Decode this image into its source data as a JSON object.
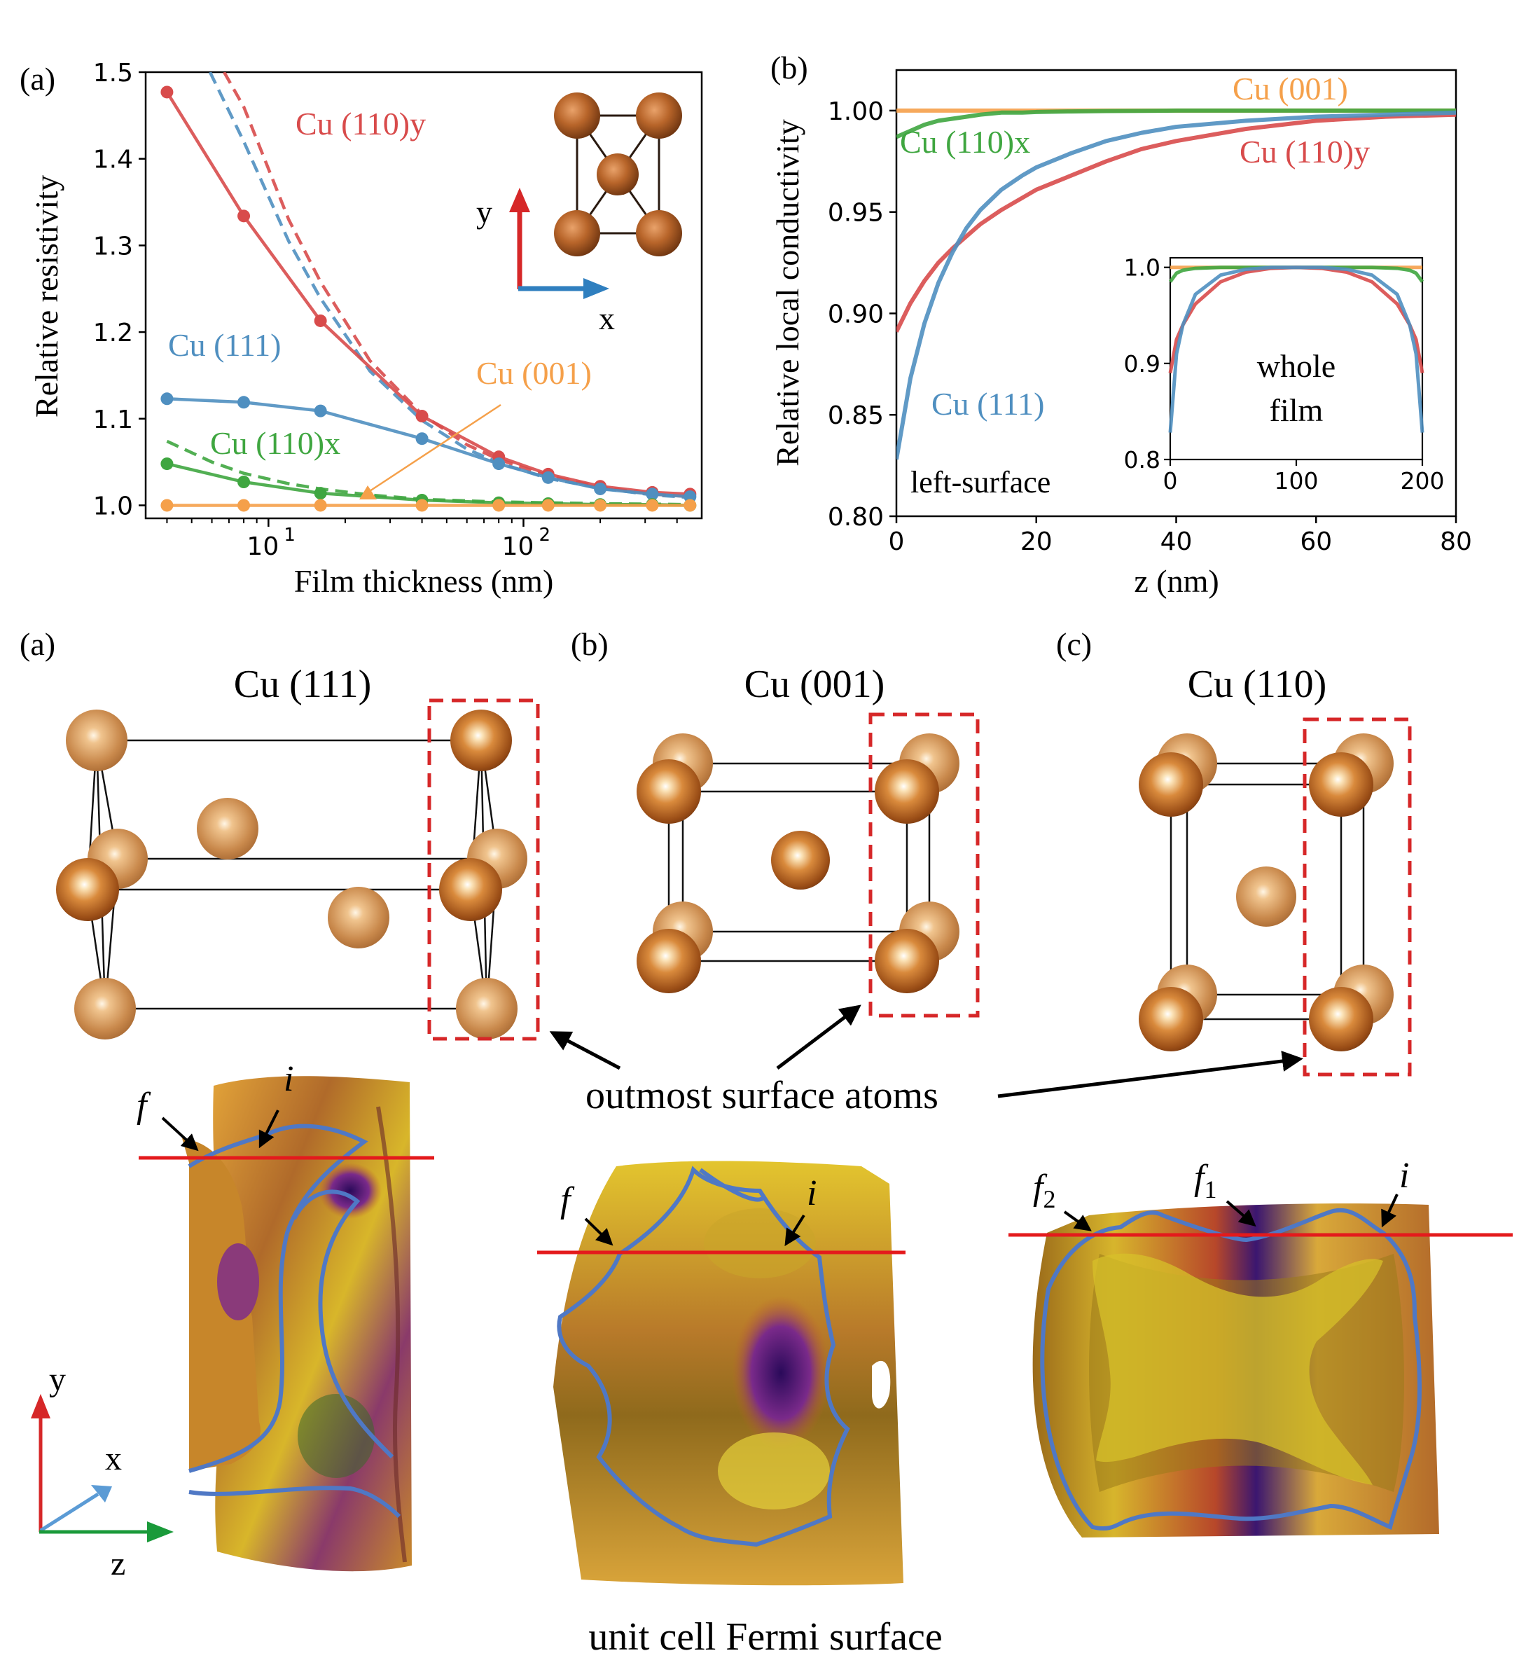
{
  "panel_a": {
    "label": "(a)",
    "ylabel": "Relative resistivity",
    "xlabel": "Film thickness (nm)",
    "yticks": [
      "1.0",
      "1.1",
      "1.2",
      "1.3",
      "1.4",
      "1.5"
    ],
    "xticks": [
      "10",
      "10"
    ],
    "xtick_sup": [
      "1",
      "2"
    ],
    "inset_axis_y": "y",
    "inset_axis_x": "x",
    "series_labels": {
      "cu110y": "Cu (110)y",
      "cu111": "Cu (111)",
      "cu001": "Cu (001)",
      "cu110x": "Cu (110)x"
    }
  },
  "panel_b": {
    "label": "(b)",
    "ylabel": "Relative local conductivity",
    "xlabel": "z (nm)",
    "yticks": [
      "0.80",
      "0.85",
      "0.90",
      "0.95",
      "1.00"
    ],
    "xticks": [
      "0",
      "20",
      "40",
      "60",
      "80"
    ],
    "annotation": "left-surface",
    "series_labels": {
      "cu001": "Cu (001)",
      "cu110x": "Cu (110)x",
      "cu110y": "Cu (110)y",
      "cu111": "Cu (111)"
    },
    "inset": {
      "label1": "whole",
      "label2": "film",
      "yticks": [
        "0.8",
        "0.9",
        "1.0"
      ],
      "xticks": [
        "0",
        "100",
        "200"
      ]
    }
  },
  "lower": {
    "panels": [
      {
        "label": "(a)",
        "title": "Cu (111)"
      },
      {
        "label": "(b)",
        "title": "Cu (001)"
      },
      {
        "label": "(c)",
        "title": "Cu (110)"
      }
    ],
    "outmost_label": "outmost surface atoms",
    "fermi_caption": "unit cell Fermi surface",
    "markers_a": {
      "f": "f",
      "i": "i"
    },
    "markers_b": {
      "f": "f",
      "i": "i"
    },
    "markers_c": {
      "f2": "f",
      "f2_sub": "2",
      "f1": "f",
      "f1_sub": "1",
      "i": "i"
    },
    "axes": {
      "y": "y",
      "x": "x",
      "z": "z"
    }
  },
  "colors": {
    "cu111": "#4f8fc0",
    "cu001": "#f5a04a",
    "cu110x": "#3fa640",
    "cu110y": "#d84b4b",
    "copper": "#b8652a"
  },
  "chart_data": [
    {
      "type": "line",
      "title": "",
      "xlabel": "Film thickness (nm)",
      "ylabel": "Relative resistivity",
      "xscale": "log",
      "xlim": [
        3.3,
        500
      ],
      "ylim": [
        0.985,
        1.5
      ],
      "x": [
        4,
        8,
        16,
        40,
        80,
        125,
        200,
        320,
        450
      ],
      "series": [
        {
          "name": "Cu (110)y",
          "values": [
            1.477,
            1.334,
            1.213,
            1.103,
            1.056,
            1.036,
            1.022,
            1.015,
            1.013
          ]
        },
        {
          "name": "Cu (111)",
          "values": [
            1.123,
            1.119,
            1.109,
            1.077,
            1.048,
            1.032,
            1.019,
            1.013,
            1.01
          ]
        },
        {
          "name": "Cu (110)x",
          "values": [
            1.048,
            1.027,
            1.014,
            1.006,
            1.003,
            1.002,
            1.001,
            1.001,
            1.0
          ]
        },
        {
          "name": "Cu (001)",
          "values": [
            1.0,
            1.0,
            1.0,
            1.0,
            1.0,
            1.0,
            1.0,
            1.0,
            1.0
          ]
        }
      ],
      "dashed_limits": [
        {
          "x": [
            5.9,
            8,
            12,
            16,
            25,
            40,
            60,
            80,
            125,
            200,
            320,
            450
          ],
          "values": [
            1.5,
            1.42,
            1.305,
            1.239,
            1.155,
            1.098,
            1.065,
            1.049,
            1.031,
            1.02,
            1.012,
            1.009
          ]
        },
        {
          "x": [
            6.7,
            8,
            12,
            16,
            25,
            40,
            60,
            80,
            125,
            200,
            320,
            450
          ],
          "values": [
            1.5,
            1.46,
            1.33,
            1.258,
            1.167,
            1.105,
            1.07,
            1.053,
            1.034,
            1.021,
            1.013,
            1.01
          ]
        },
        {
          "x": [
            4,
            6,
            8,
            12,
            16,
            25,
            40,
            80,
            200,
            450
          ],
          "values": [
            1.074,
            1.05,
            1.037,
            1.025,
            1.019,
            1.012,
            1.007,
            1.004,
            1.002,
            1.001
          ]
        }
      ],
      "grid": false
    },
    {
      "type": "line",
      "title": "",
      "xlabel": "z (nm)",
      "ylabel": "Relative local conductivity",
      "xlim": [
        0,
        80
      ],
      "ylim": [
        0.8,
        1.02
      ],
      "x": [
        0,
        2,
        4,
        6,
        8,
        10,
        12,
        15,
        18,
        20,
        25,
        30,
        35,
        40,
        50,
        60,
        70,
        80
      ],
      "series": [
        {
          "name": "Cu (001)",
          "values": [
            1.0,
            1.0,
            1.0,
            1.0,
            1.0,
            1.0,
            1.0,
            1.0,
            1.0,
            1.0,
            1.0,
            1.0,
            1.0,
            1.0,
            1.0,
            1.0,
            1.0,
            1.0
          ]
        },
        {
          "name": "Cu (110)x",
          "values": [
            0.987,
            0.99,
            0.993,
            0.995,
            0.996,
            0.997,
            0.998,
            0.999,
            0.999,
            0.9993,
            0.9996,
            0.9998,
            0.9999,
            1.0,
            1.0,
            1.0,
            1.0,
            1.0
          ]
        },
        {
          "name": "Cu (110)y",
          "values": [
            0.891,
            0.905,
            0.916,
            0.925,
            0.932,
            0.938,
            0.944,
            0.951,
            0.957,
            0.961,
            0.968,
            0.975,
            0.981,
            0.985,
            0.991,
            0.995,
            0.997,
            0.998
          ]
        },
        {
          "name": "Cu (111)",
          "values": [
            0.828,
            0.868,
            0.895,
            0.915,
            0.93,
            0.942,
            0.951,
            0.961,
            0.968,
            0.972,
            0.979,
            0.985,
            0.989,
            0.992,
            0.995,
            0.997,
            0.998,
            0.999
          ]
        }
      ],
      "grid": false
    },
    {
      "type": "line",
      "title": "",
      "xlim": [
        0,
        200
      ],
      "ylim": [
        0.8,
        1.01
      ],
      "x": [
        0,
        5,
        10,
        20,
        40,
        60,
        80,
        100,
        120,
        140,
        160,
        180,
        190,
        195,
        200
      ],
      "series": [
        {
          "name": "Cu (001)",
          "values": [
            1.0,
            1.0,
            1.0,
            1.0,
            1.0,
            1.0,
            1.0,
            1.0,
            1.0,
            1.0,
            1.0,
            1.0,
            1.0,
            1.0,
            1.0
          ]
        },
        {
          "name": "Cu (110)x",
          "values": [
            0.985,
            0.994,
            0.997,
            0.999,
            1.0,
            1.0,
            1.0,
            1.0,
            1.0,
            1.0,
            1.0,
            0.999,
            0.997,
            0.994,
            0.985
          ]
        },
        {
          "name": "Cu (110)y",
          "values": [
            0.89,
            0.925,
            0.94,
            0.962,
            0.985,
            0.995,
            0.999,
            1.0,
            0.999,
            0.995,
            0.985,
            0.962,
            0.94,
            0.925,
            0.89
          ]
        },
        {
          "name": "Cu (111)",
          "values": [
            0.828,
            0.91,
            0.94,
            0.972,
            0.992,
            0.998,
            1.0,
            1.0,
            1.0,
            0.998,
            0.992,
            0.972,
            0.94,
            0.91,
            0.828
          ]
        }
      ],
      "grid": false
    }
  ]
}
